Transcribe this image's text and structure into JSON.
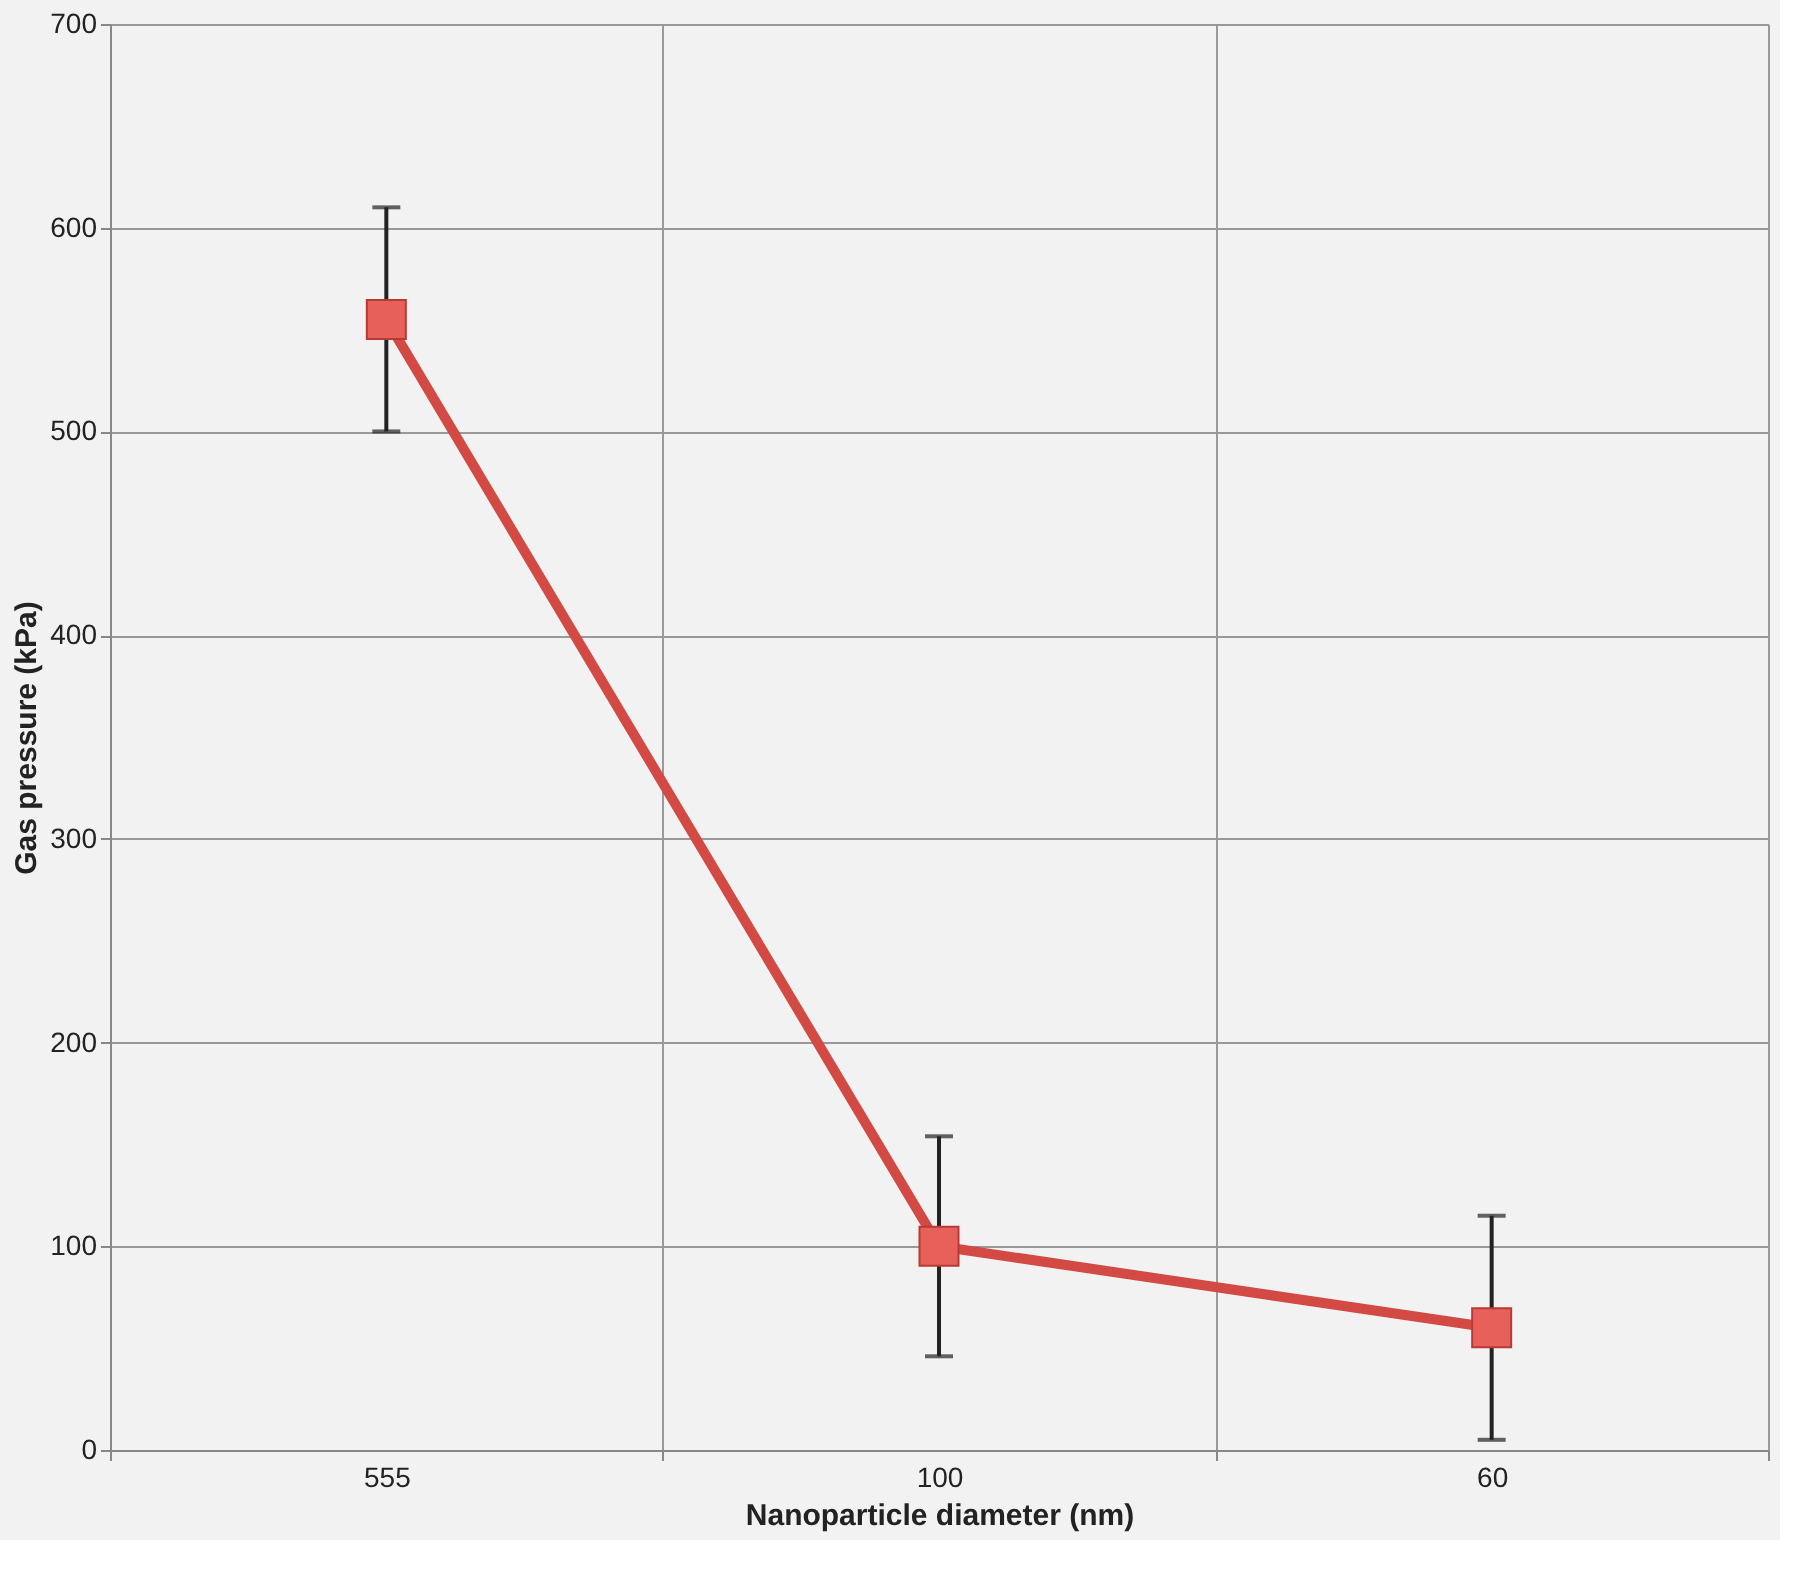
{
  "chart_data": {
    "type": "line",
    "xlabel": "Nanoparticle diameter (nm)",
    "ylabel": "Gas pressure (kPa)",
    "categories": [
      "555",
      "100",
      "60"
    ],
    "series": [
      {
        "color": "#d24a43",
        "values": [
          555,
          100,
          60
        ],
        "errors": [
          55,
          54,
          55
        ]
      }
    ],
    "ylim": [
      0,
      700
    ],
    "yticks": [
      0,
      100,
      200,
      300,
      400,
      500,
      600,
      700
    ],
    "grid": true,
    "marker": "square",
    "line_style": "solid"
  }
}
